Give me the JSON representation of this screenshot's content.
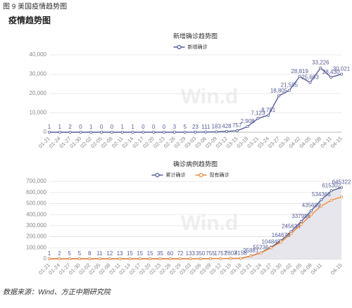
{
  "caption": "图 9  美国疫情趋势图",
  "heading": "疫情趋势图",
  "source": "数据来源：Wind、方正中期研究院",
  "chart_data": [
    {
      "type": "line",
      "title": "新增确诊趋势图",
      "watermark": "Win.d",
      "legend": "top",
      "categories": [
        "01-21",
        "01-24",
        "01-27",
        "01-30",
        "02-02",
        "02-05",
        "02-08",
        "02-11",
        "02-14",
        "02-17",
        "02-20",
        "02-23",
        "02-26",
        "02-29",
        "03-03",
        "03-06",
        "03-09",
        "03-12",
        "03-15",
        "03-18",
        "03-21",
        "03-24",
        "03-27",
        "03-30",
        "04-02",
        "04-05",
        "04-08",
        "04-11",
        "04-15"
      ],
      "series": [
        {
          "name": "新增确诊",
          "color": "#555d96",
          "values": [
            1,
            1,
            2,
            0,
            1,
            0,
            0,
            1,
            1,
            0,
            0,
            0,
            3,
            5,
            23,
            111,
            183,
            428,
            757,
            2908,
            7123,
            8781,
            18805,
            21595,
            28819,
            25693,
            33226,
            28430,
            30021
          ],
          "value_labels": [
            "1",
            "1",
            "2",
            "0",
            "1",
            "0",
            "0",
            "1",
            "1",
            "0",
            "0",
            "0",
            "3",
            "5",
            "23",
            "111",
            "183",
            "428",
            "757",
            "2,908",
            "7,123",
            "8,781",
            "18,805",
            "21,595",
            "28,819",
            "25,693",
            "33,226",
            "28,430",
            "30,021"
          ]
        }
      ],
      "ylim": [
        0,
        40000
      ],
      "yticks": [
        0,
        {
          "value": 10000,
          "label": "10,000"
        },
        {
          "value": 20000,
          "label": "20,000"
        },
        {
          "value": 30000,
          "label": "30,000"
        },
        {
          "value": 40000,
          "label": "40,000"
        }
      ],
      "grid": true
    },
    {
      "type": "line",
      "title": "确诊病例趋势图",
      "watermark": "Win.d",
      "legend": "top",
      "categories": [
        "01-21",
        "01-24",
        "01-27",
        "01-30",
        "02-02",
        "02-05",
        "02-08",
        "02-11",
        "02-14",
        "02-17",
        "02-20",
        "02-23",
        "02-26",
        "02-29",
        "03-03",
        "03-06",
        "03-09",
        "03-12",
        "03-15",
        "03-18",
        "03-21",
        "03-24",
        "03-27",
        "03-30",
        "04-02",
        "04-05",
        "04-08",
        "04-11",
        null,
        "04-15"
      ],
      "series": [
        {
          "name": "累计确诊",
          "color": "#555d96",
          "fill": "#e6e6ec",
          "values": [
            1,
            2,
            5,
            5,
            8,
            11,
            12,
            13,
            15,
            15,
            15,
            35,
            60,
            72,
            133,
            350,
            755,
            1757,
            2802,
            4158,
            25881,
            55236,
            104848,
            164678,
            245634,
            337956,
            435609,
            534366,
            615302,
            645322
          ]
        },
        {
          "name": "现有确诊",
          "color": "#f08a3c",
          "values": [
            1,
            2,
            5,
            5,
            8,
            8,
            8,
            8,
            8,
            8,
            8,
            27,
            50,
            60,
            110,
            320,
            720,
            1700,
            2700,
            4000,
            24500,
            52500,
            99000,
            152000,
            228000,
            312000,
            398000,
            478000,
            530000,
            560000
          ]
        }
      ],
      "ylim": [
        0,
        700000
      ],
      "yticks": [
        0,
        {
          "value": 100000,
          "label": "100,000"
        },
        {
          "value": 200000,
          "label": "200,000"
        },
        {
          "value": 300000,
          "label": "300,000"
        },
        {
          "value": 400000,
          "label": "400,000"
        },
        {
          "value": 500000,
          "label": "500,000"
        },
        {
          "value": 600000,
          "label": "600,000"
        },
        {
          "value": 700000,
          "label": "700,000"
        }
      ],
      "grid": true,
      "label_series": 0
    }
  ]
}
